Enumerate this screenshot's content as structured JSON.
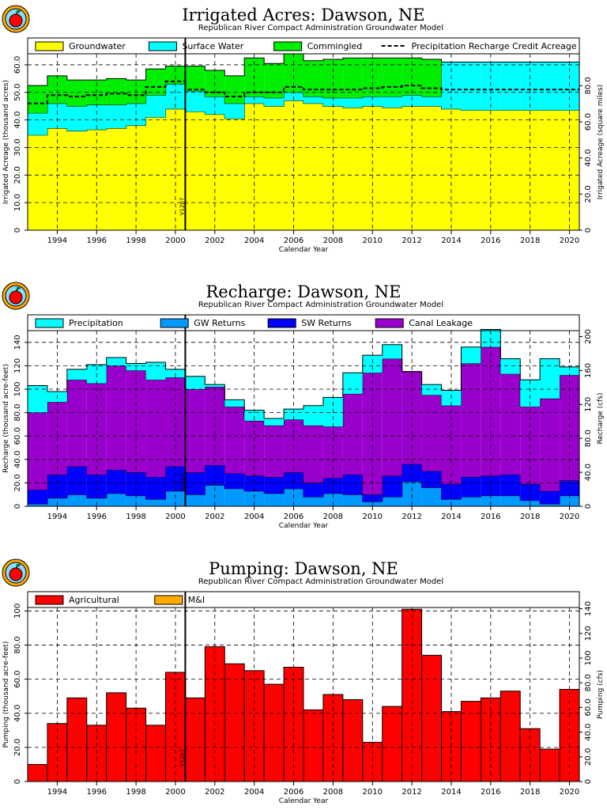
{
  "chart_data": [
    {
      "type": "area",
      "stacked": true,
      "title": "Irrigated  Acres:  Dawson,  NE",
      "subtitle": "Republican River Compact Administration Groundwater Model",
      "xlabel": "Calendar Year",
      "ylabel": "Irrigated Acreage (thousand acres)",
      "ylabel_right": "Irrigated Acreage (square miles)",
      "xticks": [
        "1994",
        "1996",
        "1998",
        "2000",
        "2002",
        "2004",
        "2006",
        "2008",
        "2010",
        "2012",
        "2014",
        "2016",
        "2018",
        "2020"
      ],
      "yticks": [
        "0",
        "10.0",
        "20.0",
        "30.0",
        "40.0",
        "50.0",
        "60.0"
      ],
      "yticks_right": [
        "0",
        "20.0",
        "40.0",
        "60.0",
        "80.0"
      ],
      "ylim": [
        0,
        64
      ],
      "grid": true,
      "legend_position": "top",
      "vline_label": "V12p7",
      "vline_year": 2000.5,
      "x": [
        1993,
        1994,
        1995,
        1996,
        1997,
        1998,
        1999,
        2000,
        2001,
        2002,
        2003,
        2004,
        2005,
        2006,
        2007,
        2008,
        2009,
        2010,
        2011,
        2012,
        2013,
        2014,
        2015,
        2016,
        2017,
        2018,
        2019,
        2020
      ],
      "series": [
        {
          "name": "Groundwater",
          "color": "#ffff00",
          "values": [
            34.5,
            37,
            36,
            36.5,
            37,
            38,
            41,
            44,
            43,
            42,
            40.5,
            46,
            45,
            47,
            46,
            45,
            44.5,
            45,
            44.5,
            45,
            45,
            44,
            43.5,
            43.5,
            43.5,
            43.5,
            43.5,
            43.5
          ]
        },
        {
          "name": "Surface Water",
          "color": "#00ffff",
          "values": [
            8,
            9,
            9,
            9,
            8.5,
            8,
            8,
            9,
            7.5,
            6.5,
            5.5,
            2.5,
            3,
            3,
            2.5,
            3,
            3.5,
            3.5,
            4,
            4,
            3.5,
            17,
            17.5,
            17.5,
            17.5,
            17.5,
            17.5,
            17.5
          ]
        },
        {
          "name": "Commingled",
          "color": "#00ee00",
          "values": [
            10,
            10,
            9.5,
            9,
            9.5,
            8.5,
            9.5,
            6.5,
            9,
            9.5,
            10,
            14,
            12.5,
            14,
            13,
            14,
            14.5,
            14,
            14,
            13.5,
            13.5,
            0,
            0,
            0,
            0,
            0,
            0,
            0
          ]
        }
      ],
      "line_series": {
        "name": "Precipitation Recharge Credit Acreage",
        "style": "dashed",
        "values": [
          46,
          49,
          48.5,
          49,
          49.5,
          49,
          52,
          54,
          51,
          50,
          48.5,
          50,
          50,
          52,
          51,
          51,
          51,
          51.5,
          52,
          52.5,
          51.5,
          51,
          51,
          51,
          51,
          51,
          51,
          51
        ]
      }
    },
    {
      "type": "area",
      "stacked": true,
      "title": "Recharge:  Dawson,  NE",
      "subtitle": "Republican River Compact Administration Groundwater Model",
      "xlabel": "Calendar Year",
      "ylabel": "Recharge (thousand acre-feet)",
      "ylabel_right": "Recharge (cfs)",
      "xticks": [
        "1994",
        "1996",
        "1998",
        "2000",
        "2002",
        "2004",
        "2006",
        "2008",
        "2010",
        "2012",
        "2014",
        "2016",
        "2018",
        "2020"
      ],
      "yticks": [
        "0",
        "20.0",
        "40.0",
        "60.0",
        "80.0",
        "100",
        "120",
        "140"
      ],
      "yticks_right": [
        "0",
        "40.0",
        "80.0",
        "120",
        "160",
        "200"
      ],
      "ylim": [
        0,
        150
      ],
      "grid": true,
      "legend_position": "top",
      "vline_label": "V12p7",
      "vline_year": 2000.5,
      "x": [
        1993,
        1994,
        1995,
        1996,
        1997,
        1998,
        1999,
        2000,
        2001,
        2002,
        2003,
        2004,
        2005,
        2006,
        2007,
        2008,
        2009,
        2010,
        2011,
        2012,
        2013,
        2014,
        2015,
        2016,
        2017,
        2018,
        2019,
        2020
      ],
      "series": [
        {
          "name": "GW Returns",
          "color": "#0099ff",
          "values": [
            2,
            7,
            10,
            7,
            11,
            9,
            6,
            13,
            10,
            18,
            15,
            13,
            11,
            15,
            8,
            11,
            10,
            4,
            8,
            21,
            16,
            6,
            8,
            9,
            9,
            5,
            2,
            9
          ]
        },
        {
          "name": "SW Returns",
          "color": "#0000ff",
          "values": [
            12,
            20,
            24,
            20,
            20,
            20,
            19,
            21,
            19,
            17,
            13,
            13,
            14,
            14,
            12,
            13,
            17,
            6,
            18,
            15,
            14,
            13,
            17,
            17,
            18,
            14,
            11,
            13
          ]
        },
        {
          "name": "Canal Leakage",
          "color": "#9900cc",
          "values": [
            66,
            62,
            74,
            78,
            89,
            87,
            83,
            76,
            71,
            67,
            57,
            47,
            44,
            45,
            49,
            44,
            69,
            104,
            100,
            79,
            65,
            67,
            97,
            110,
            86,
            66,
            79,
            90
          ]
        },
        {
          "name": "Precipitation",
          "color": "#00ffff",
          "values": [
            23,
            9,
            9,
            16,
            7,
            6,
            15,
            7,
            11,
            2,
            6,
            9,
            6,
            9,
            17,
            25,
            18,
            15,
            12,
            0,
            9,
            13,
            14,
            15,
            13,
            23,
            34,
            7
          ]
        }
      ]
    },
    {
      "type": "bar",
      "stacked": true,
      "title": "Pumping:  Dawson,  NE",
      "subtitle": "Republican River Compact Administration Groundwater Model",
      "xlabel": "Calendar Year",
      "ylabel": "Pumping (thousand acre-feet)",
      "ylabel_right": "Pumping (cfs)",
      "xticks": [
        "1994",
        "1996",
        "1998",
        "2000",
        "2002",
        "2004",
        "2006",
        "2008",
        "2010",
        "2012",
        "2014",
        "2016",
        "2018",
        "2020"
      ],
      "yticks": [
        "0",
        "20.0",
        "40.0",
        "60.0",
        "80.0",
        "100"
      ],
      "yticks_right": [
        "0",
        "20.0",
        "40.0",
        "60.0",
        "80.0",
        "100",
        "120",
        "140"
      ],
      "ylim": [
        0,
        102
      ],
      "grid": true,
      "legend_position": "top",
      "vline_label": "V12p7",
      "vline_year": 2000.5,
      "x": [
        1993,
        1994,
        1995,
        1996,
        1997,
        1998,
        1999,
        2000,
        2001,
        2002,
        2003,
        2004,
        2005,
        2006,
        2007,
        2008,
        2009,
        2010,
        2011,
        2012,
        2013,
        2014,
        2015,
        2016,
        2017,
        2018,
        2019,
        2020
      ],
      "series": [
        {
          "name": "Agricultural",
          "color": "#ff0000",
          "values": [
            10,
            34,
            49,
            33,
            52,
            43,
            33,
            64,
            49,
            79,
            69,
            65,
            57,
            67,
            42,
            51,
            48,
            23,
            44,
            101,
            74,
            41,
            47,
            49,
            53,
            31,
            19,
            54
          ]
        },
        {
          "name": "M&I",
          "color": "#ffaa00",
          "values": [
            0,
            0,
            0,
            0,
            0,
            0,
            0,
            0,
            0,
            0,
            0,
            0,
            0,
            0,
            0,
            0,
            0,
            0,
            0,
            0,
            0,
            0,
            0,
            0,
            0,
            0,
            0,
            0
          ]
        }
      ]
    }
  ]
}
